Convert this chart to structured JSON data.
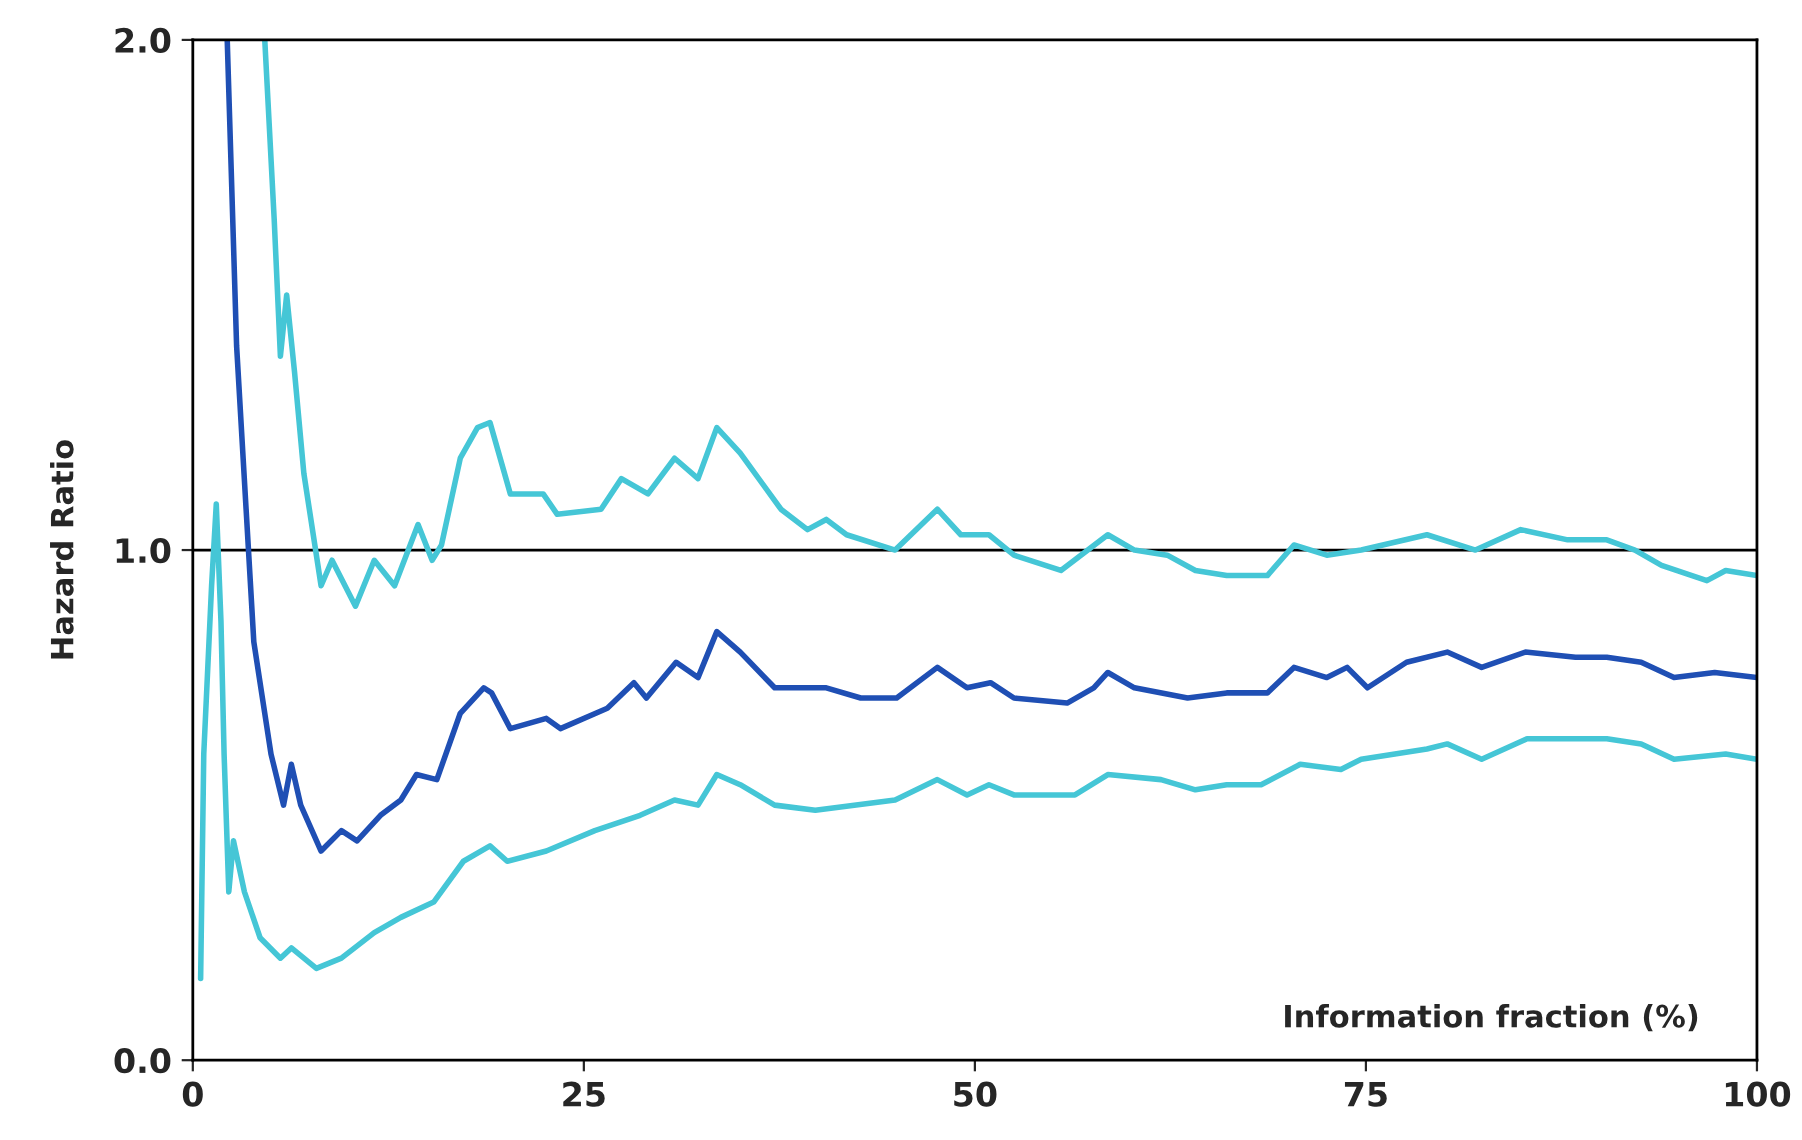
{
  "chart_data": {
    "type": "line",
    "xlabel": "Information fraction (%)",
    "ylabel": "Hazard Ratio",
    "xlim": [
      0,
      100
    ],
    "xticks": [
      0,
      25,
      50,
      75,
      100
    ],
    "ylim": [
      0,
      2
    ],
    "yticks": [
      {
        "value": 0,
        "label": "0.0"
      },
      {
        "value": 1,
        "label": "1.0"
      },
      {
        "value": 2,
        "label": "2.0"
      }
    ],
    "grid": false,
    "legend": false,
    "marker": "none",
    "line_style": "solid",
    "ref_lines": [
      {
        "axis": "y",
        "value": 1,
        "label": null,
        "color": "#000000",
        "line_style": "solid"
      }
    ],
    "series": [
      {
        "color": "#45c6d6",
        "x": [
          4.6,
          5.2,
          5.6,
          6.0,
          6.5,
          7.1,
          8.2,
          8.9,
          10.4,
          11.6,
          12.9,
          14.4,
          15.3,
          15.9,
          17.1,
          18.2,
          19.0,
          20.3,
          22.4,
          23.3,
          26.1,
          27.4,
          29.1,
          30.8,
          32.3,
          33.5,
          35.0,
          37.6,
          39.3,
          40.5,
          41.8,
          44.9,
          47.6,
          49.1,
          50.9,
          52.5,
          55.5,
          58.5,
          60.2,
          62.3,
          64.1,
          66.1,
          68.7,
          70.4,
          72.5,
          74.7,
          78.9,
          82.0,
          84.9,
          87.9,
          90.4,
          92.2,
          93.9,
          96.8,
          98.0,
          100
        ],
        "values": [
          2.0,
          1.65,
          1.38,
          1.5,
          1.35,
          1.15,
          0.93,
          0.98,
          0.89,
          0.98,
          0.93,
          1.05,
          0.98,
          1.01,
          1.18,
          1.24,
          1.25,
          1.11,
          1.11,
          1.07,
          1.08,
          1.14,
          1.11,
          1.18,
          1.14,
          1.24,
          1.19,
          1.08,
          1.04,
          1.06,
          1.03,
          1.0,
          1.08,
          1.03,
          1.03,
          0.99,
          0.96,
          1.03,
          1.0,
          0.99,
          0.96,
          0.95,
          0.95,
          1.01,
          0.99,
          1.0,
          1.03,
          1.0,
          1.04,
          1.02,
          1.02,
          1.0,
          0.97,
          0.94,
          0.96,
          0.95
        ]
      },
      {
        "color": "#1f4fb4",
        "x": [
          2.2,
          2.8,
          3.9,
          5.0,
          5.8,
          6.3,
          6.9,
          8.2,
          9.5,
          10.5,
          12.0,
          13.3,
          14.3,
          15.6,
          17.1,
          18.6,
          19.1,
          20.3,
          22.6,
          23.5,
          26.5,
          28.2,
          29.0,
          30.9,
          32.3,
          33.5,
          35.0,
          37.2,
          40.5,
          42.7,
          45.0,
          47.6,
          49.5,
          51.0,
          52.5,
          55.9,
          57.6,
          58.5,
          60.2,
          63.6,
          66.1,
          68.7,
          70.4,
          72.5,
          73.8,
          75.1,
          77.6,
          80.2,
          82.4,
          85.2,
          88.4,
          90.4,
          92.6,
          94.7,
          97.3,
          100
        ],
        "values": [
          2.0,
          1.4,
          0.82,
          0.6,
          0.5,
          0.58,
          0.5,
          0.41,
          0.45,
          0.43,
          0.48,
          0.51,
          0.56,
          0.55,
          0.68,
          0.73,
          0.72,
          0.65,
          0.67,
          0.65,
          0.69,
          0.74,
          0.71,
          0.78,
          0.75,
          0.84,
          0.8,
          0.73,
          0.73,
          0.71,
          0.71,
          0.77,
          0.73,
          0.74,
          0.71,
          0.7,
          0.73,
          0.76,
          0.73,
          0.71,
          0.72,
          0.72,
          0.77,
          0.75,
          0.77,
          0.73,
          0.78,
          0.8,
          0.77,
          0.8,
          0.79,
          0.79,
          0.78,
          0.75,
          0.76,
          0.75
        ]
      },
      {
        "color": "#45c6d6",
        "x": [
          0.5,
          0.7,
          1.2,
          1.5,
          1.8,
          2.0,
          2.3,
          2.6,
          3.3,
          4.3,
          5.6,
          6.3,
          7.9,
          9.5,
          11.6,
          13.3,
          15.4,
          17.3,
          19.0,
          20.1,
          22.6,
          25.7,
          28.6,
          30.8,
          32.3,
          33.5,
          35.0,
          37.2,
          39.8,
          44.9,
          47.6,
          49.5,
          50.9,
          52.5,
          56.4,
          58.5,
          61.9,
          64.1,
          66.1,
          68.3,
          70.8,
          73.4,
          74.7,
          78.9,
          80.2,
          82.4,
          85.3,
          90.4,
          92.6,
          94.7,
          98.0,
          100
        ],
        "values": [
          0.16,
          0.6,
          0.93,
          1.09,
          0.86,
          0.6,
          0.33,
          0.43,
          0.33,
          0.24,
          0.2,
          0.22,
          0.18,
          0.2,
          0.25,
          0.28,
          0.31,
          0.39,
          0.42,
          0.39,
          0.41,
          0.45,
          0.48,
          0.51,
          0.5,
          0.56,
          0.54,
          0.5,
          0.49,
          0.51,
          0.55,
          0.52,
          0.54,
          0.52,
          0.52,
          0.56,
          0.55,
          0.53,
          0.54,
          0.54,
          0.58,
          0.57,
          0.59,
          0.61,
          0.62,
          0.59,
          0.63,
          0.63,
          0.62,
          0.59,
          0.6,
          0.59
        ]
      }
    ]
  }
}
